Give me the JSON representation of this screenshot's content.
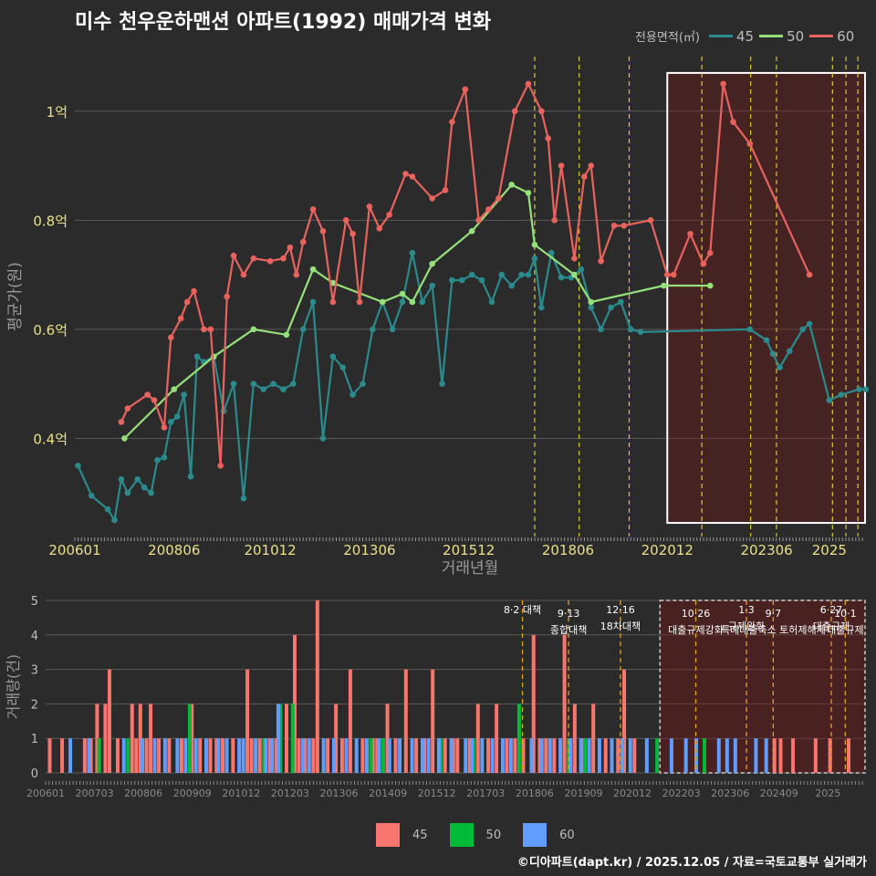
{
  "title": "미수 천우운하맨션 아파트(1992) 매매가격 변화",
  "legend": {
    "label": "전용면적(㎡)",
    "items": [
      {
        "name": "45",
        "color": "#2a8a8c"
      },
      {
        "name": "50",
        "color": "#95e07a"
      },
      {
        "name": "60",
        "color": "#e8625e"
      }
    ]
  },
  "bar_legend": [
    {
      "name": "45",
      "color": "#f8766d"
    },
    {
      "name": "50",
      "color": "#00ba38"
    },
    {
      "name": "60",
      "color": "#619cff"
    }
  ],
  "footer": "©디아파트(dapt.kr) / 2025.12.05 / 자료=국토교통부 실거래가",
  "chart_data": [
    {
      "type": "line",
      "title": "미수 천우운하맨션 아파트(1992) 매매가격 변화",
      "xlabel": "거래년월",
      "ylabel": "평균가(원)",
      "xlim": [
        2006.0,
        2025.9
      ],
      "ylim": [
        0.22,
        1.1
      ],
      "y_ticks": [
        0.4,
        0.6,
        0.8,
        1.0
      ],
      "y_tick_labels": [
        "0.4억",
        "0.6억",
        "0.8억",
        "1억"
      ],
      "x_ticks": [
        2006.0,
        2008.5,
        2010.92,
        2013.42,
        2015.92,
        2018.42,
        2020.92,
        2023.42,
        2025.0
      ],
      "x_tick_labels": [
        "200601",
        "200806",
        "201012",
        "201306",
        "201512",
        "201806",
        "202012",
        "202306",
        "2025"
      ],
      "policy_lines": [
        2017.58,
        2018.7,
        2019.96,
        2021.79,
        2023.02,
        2023.67,
        2025.08,
        2025.42,
        2025.72
      ],
      "highlight": {
        "x0": 2020.92,
        "x1": 2025.9,
        "y0": 0.245,
        "y1": 1.07
      },
      "series": [
        {
          "name": "45",
          "color": "#2a8a8c",
          "x": [
            2006.08,
            2006.42,
            2006.83,
            2007.0,
            2007.17,
            2007.33,
            2007.58,
            2007.75,
            2007.92,
            2008.08,
            2008.25,
            2008.42,
            2008.58,
            2008.75,
            2008.92,
            2009.08,
            2009.25,
            2009.5,
            2009.75,
            2010.0,
            2010.25,
            2010.5,
            2010.75,
            2011.0,
            2011.25,
            2011.5,
            2011.75,
            2012.0,
            2012.25,
            2012.5,
            2012.75,
            2013.0,
            2013.25,
            2013.5,
            2013.75,
            2014.0,
            2014.25,
            2014.5,
            2014.75,
            2015.0,
            2015.25,
            2015.5,
            2015.75,
            2016.0,
            2016.25,
            2016.5,
            2016.75,
            2017.0,
            2017.25,
            2017.42,
            2017.58,
            2017.75,
            2018.0,
            2018.25,
            2018.5,
            2018.75,
            2019.0,
            2019.25,
            2019.5,
            2019.75,
            2020.0,
            2020.25,
            2023.0,
            2023.42,
            2023.58,
            2023.75,
            2024.0,
            2024.33,
            2024.5,
            2025.0,
            2025.3,
            2025.75,
            2025.92
          ],
          "values": [
            0.35,
            0.295,
            0.27,
            0.25,
            0.325,
            0.3,
            0.325,
            0.31,
            0.3,
            0.36,
            0.365,
            0.43,
            0.44,
            0.48,
            0.33,
            0.55,
            0.54,
            0.55,
            0.45,
            0.5,
            0.29,
            0.5,
            0.49,
            0.5,
            0.49,
            0.5,
            0.6,
            0.65,
            0.4,
            0.55,
            0.53,
            0.48,
            0.5,
            0.6,
            0.65,
            0.6,
            0.65,
            0.74,
            0.65,
            0.68,
            0.5,
            0.69,
            0.69,
            0.7,
            0.69,
            0.65,
            0.7,
            0.68,
            0.7,
            0.7,
            0.73,
            0.64,
            0.74,
            0.695,
            0.695,
            0.71,
            0.64,
            0.6,
            0.64,
            0.65,
            0.6,
            0.595,
            0.6,
            0.58,
            0.555,
            0.53,
            0.56,
            0.6,
            0.61,
            0.47,
            0.48,
            0.49,
            0.49
          ]
        },
        {
          "name": "50",
          "color": "#95e07a",
          "x": [
            2007.25,
            2008.5,
            2009.5,
            2010.5,
            2011.33,
            2012.0,
            2012.5,
            2013.75,
            2014.25,
            2014.5,
            2015.0,
            2016.0,
            2017.0,
            2017.42,
            2017.58,
            2018.58,
            2019.0,
            2020.83,
            2022.0
          ],
          "values": [
            0.4,
            0.49,
            0.55,
            0.6,
            0.59,
            0.71,
            0.685,
            0.65,
            0.665,
            0.65,
            0.72,
            0.78,
            0.865,
            0.85,
            0.755,
            0.7,
            0.65,
            0.68,
            0.68
          ]
        },
        {
          "name": "60",
          "color": "#e8625e",
          "x": [
            2007.17,
            2007.33,
            2007.83,
            2008.0,
            2008.25,
            2008.42,
            2008.67,
            2008.83,
            2009.0,
            2009.25,
            2009.42,
            2009.67,
            2009.83,
            2010.0,
            2010.25,
            2010.5,
            2010.92,
            2011.25,
            2011.42,
            2011.58,
            2011.75,
            2012.0,
            2012.25,
            2012.5,
            2012.83,
            2013.0,
            2013.17,
            2013.42,
            2013.67,
            2013.92,
            2014.33,
            2014.5,
            2015.0,
            2015.33,
            2015.5,
            2015.83,
            2016.17,
            2016.42,
            2016.67,
            2017.08,
            2017.42,
            2017.75,
            2017.92,
            2018.08,
            2018.25,
            2018.58,
            2018.83,
            2019.0,
            2019.25,
            2019.58,
            2019.83,
            2020.5,
            2020.92,
            2021.08,
            2021.5,
            2021.83,
            2022.0,
            2022.33,
            2022.58,
            2023.0,
            2024.5
          ],
          "values": [
            0.43,
            0.455,
            0.48,
            0.47,
            0.42,
            0.585,
            0.62,
            0.65,
            0.67,
            0.6,
            0.6,
            0.35,
            0.66,
            0.735,
            0.7,
            0.73,
            0.725,
            0.73,
            0.75,
            0.7,
            0.76,
            0.82,
            0.78,
            0.65,
            0.8,
            0.775,
            0.65,
            0.825,
            0.785,
            0.81,
            0.885,
            0.88,
            0.84,
            0.855,
            0.98,
            1.04,
            0.8,
            0.82,
            0.84,
            1.0,
            1.05,
            1.0,
            0.95,
            0.8,
            0.9,
            0.73,
            0.88,
            0.9,
            0.725,
            0.79,
            0.79,
            0.8,
            0.7,
            0.7,
            0.775,
            0.72,
            0.74,
            1.05,
            0.98,
            0.94,
            0.7
          ]
        }
      ]
    },
    {
      "type": "bar",
      "xlabel": "",
      "ylabel": "거래량(건)",
      "xlim": [
        2006.0,
        2025.9
      ],
      "ylim": [
        0,
        5
      ],
      "y_ticks": [
        0,
        1,
        2,
        3,
        4,
        5
      ],
      "x_tick_labels": [
        "200601",
        "200703",
        "200806",
        "200909",
        "201012",
        "201203",
        "201306",
        "201409",
        "201512",
        "201703",
        "201806",
        "201909",
        "202012",
        "202203",
        "202306",
        "202409",
        "2025"
      ],
      "policy_annotations": [
        {
          "x": 2017.58,
          "date": "8·2 대책",
          "text": ""
        },
        {
          "x": 2018.7,
          "date": "9·13",
          "text": "종합대책"
        },
        {
          "x": 2019.96,
          "date": "12·16",
          "text": "18차대책"
        },
        {
          "x": 2021.79,
          "date": "10·26",
          "text": "대출규제강화"
        },
        {
          "x": 2023.02,
          "date": "1·3",
          "text": "규제완화"
        },
        {
          "x": 2023.67,
          "date": "9·7",
          "text": "특례대출축소 토허제해제"
        },
        {
          "x": 2025.08,
          "date": "6·27",
          "text": "대출규제"
        },
        {
          "x": 2025.42,
          "date": "10·1",
          "text": "대출규제"
        }
      ],
      "series": [
        {
          "name": "45",
          "color": "#f8766d",
          "x": [
            2006.1,
            2006.4,
            2006.95,
            2007.1,
            2007.25,
            2007.45,
            2007.55,
            2007.75,
            2008.1,
            2008.2,
            2008.3,
            2008.45,
            2008.55,
            2008.75,
            2009.0,
            2009.3,
            2009.55,
            2009.75,
            2010.0,
            2010.15,
            2010.3,
            2010.55,
            2010.9,
            2011.0,
            2011.2,
            2011.45,
            2011.6,
            2011.85,
            2012.05,
            2012.15,
            2012.3,
            2012.5,
            2012.6,
            2012.85,
            2013.05,
            2013.2,
            2013.4,
            2013.7,
            2013.95,
            2014.05,
            2014.3,
            2014.5,
            2014.75,
            2015.0,
            2015.2,
            2015.4,
            2015.7,
            2015.9,
            2016.0,
            2016.3,
            2016.5,
            2016.75,
            2016.95,
            2017.2,
            2017.4,
            2017.6,
            2017.85,
            2018.0,
            2018.15,
            2018.35,
            2018.6,
            2018.85,
            2019.05,
            2019.3,
            2019.6,
            2019.9,
            2020.05,
            2020.3,
            2023.7,
            2023.85,
            2024.15,
            2024.7,
            2025.05,
            2025.5
          ],
          "values": [
            1,
            1,
            1,
            1,
            2,
            2,
            3,
            1,
            2,
            1,
            2,
            1,
            2,
            1,
            1,
            1,
            2,
            1,
            1,
            1,
            1,
            1,
            3,
            1,
            1,
            1,
            1,
            2,
            4,
            1,
            1,
            1,
            5,
            1,
            2,
            1,
            3,
            1,
            1,
            1,
            2,
            1,
            3,
            1,
            1,
            3,
            1,
            1,
            1,
            1,
            2,
            1,
            2,
            1,
            1,
            1,
            4,
            1,
            1,
            1,
            4,
            2,
            1,
            2,
            1,
            1,
            3,
            1,
            1,
            1,
            1,
            1,
            1,
            1
          ]
        },
        {
          "name": "50",
          "color": "#00ba38",
          "x": [
            2007.3,
            2008.0,
            2009.5,
            2011.3,
            2011.7,
            2012.0,
            2013.9,
            2014.2,
            2015.6,
            2016.4,
            2017.5,
            2018.7,
            2019.1,
            2020.85,
            2022.0
          ],
          "values": [
            1,
            1,
            2,
            1,
            2,
            2,
            1,
            1,
            1,
            1,
            2,
            1,
            1,
            1,
            1
          ]
        },
        {
          "name": "60",
          "color": "#619cff",
          "x": [
            2006.6,
            2007.05,
            2007.9,
            2008.35,
            2008.65,
            2008.9,
            2009.2,
            2009.4,
            2009.65,
            2009.9,
            2010.2,
            2010.4,
            2010.7,
            2010.8,
            2011.1,
            2011.35,
            2011.5,
            2011.65,
            2012.25,
            2012.4,
            2012.75,
            2013.0,
            2013.3,
            2013.55,
            2013.8,
            2014.1,
            2014.35,
            2014.6,
            2014.9,
            2015.15,
            2015.3,
            2015.55,
            2015.85,
            2016.2,
            2016.35,
            2016.6,
            2016.85,
            2017.1,
            2017.3,
            2017.8,
            2018.05,
            2018.25,
            2018.5,
            2018.75,
            2019.0,
            2019.2,
            2019.45,
            2019.75,
            2020.0,
            2020.2,
            2020.6,
            2021.2,
            2021.55,
            2021.8,
            2022.35,
            2022.55,
            2022.75,
            2023.25,
            2023.5
          ],
          "values": [
            1,
            1,
            1,
            1,
            1,
            1,
            1,
            1,
            1,
            1,
            1,
            1,
            1,
            1,
            1,
            1,
            1,
            2,
            1,
            1,
            1,
            1,
            1,
            1,
            1,
            1,
            1,
            1,
            1,
            1,
            1,
            1,
            1,
            1,
            1,
            1,
            1,
            1,
            1,
            1,
            1,
            1,
            1,
            1,
            1,
            1,
            1,
            1,
            1,
            1,
            1,
            1,
            1,
            1,
            1,
            1,
            1,
            1,
            1
          ]
        }
      ]
    }
  ]
}
